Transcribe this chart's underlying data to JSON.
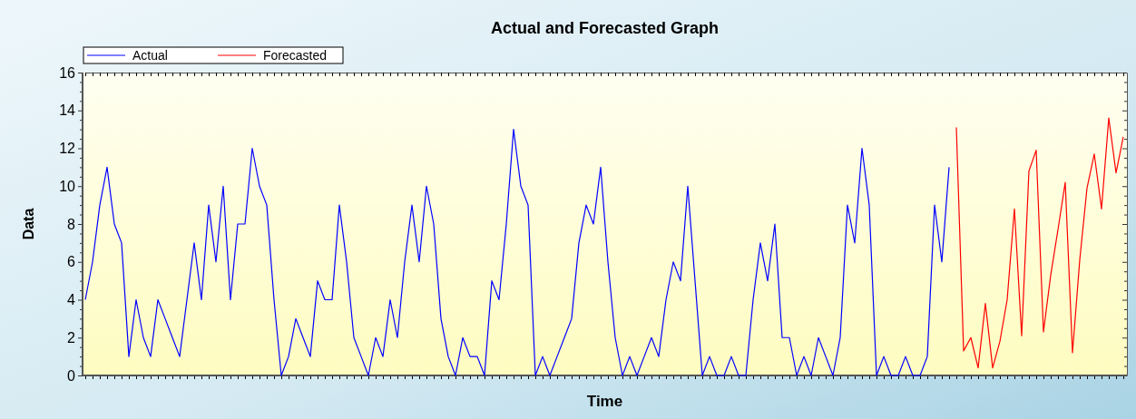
{
  "chart_data": {
    "type": "line",
    "title": "Actual and Forecasted Graph",
    "xlabel": "Time",
    "ylabel": "Data",
    "categories": [
      null,
      null,
      null,
      null,
      null,
      null,
      null,
      null,
      null,
      null,
      null,
      null,
      null,
      null,
      null,
      null,
      null,
      null,
      null,
      null,
      null,
      null,
      null,
      null,
      null,
      null,
      null,
      null,
      null,
      null,
      null,
      null,
      null,
      null,
      null,
      null,
      null,
      null,
      null,
      null,
      null,
      null,
      null,
      null,
      null,
      null,
      null,
      null,
      null,
      null,
      null,
      null,
      null,
      null,
      null,
      null,
      null,
      null,
      null,
      null,
      null,
      null,
      null,
      null,
      null,
      null,
      null,
      null,
      null,
      null,
      null,
      null,
      null,
      null,
      null,
      null,
      null,
      null,
      null,
      null,
      null,
      null,
      null,
      null,
      null,
      null,
      null,
      null,
      null,
      null,
      null,
      null,
      null,
      null,
      null,
      null,
      null,
      null,
      null,
      null,
      null,
      null,
      null,
      null,
      null,
      null,
      null,
      null,
      null,
      null,
      null,
      null,
      null,
      null,
      null,
      null,
      null,
      null,
      null,
      null,
      null,
      null,
      null,
      null,
      null,
      null,
      null,
      null,
      null,
      null,
      null,
      null,
      null,
      null,
      null,
      null,
      null,
      null,
      null,
      null,
      null,
      null,
      null,
      null
    ],
    "series": [
      {
        "name": "Actual",
        "color": "#0000ff",
        "values": [
          4,
          6,
          9,
          11,
          8,
          7,
          1,
          4,
          2,
          1,
          4,
          3,
          2,
          1,
          4,
          7,
          4,
          9,
          6,
          10,
          4,
          8,
          8,
          12,
          10,
          9,
          4,
          0,
          1,
          3,
          2,
          1,
          5,
          4,
          4,
          9,
          6,
          2,
          1,
          0,
          2,
          1,
          4,
          2,
          6,
          9,
          6,
          10,
          8,
          3,
          1,
          0,
          2,
          1,
          1,
          0,
          5,
          4,
          8,
          13,
          10,
          9,
          0,
          1,
          0,
          1,
          2,
          3,
          7,
          9,
          8,
          11,
          6,
          2,
          0,
          1,
          0,
          1,
          2,
          1,
          4,
          6,
          5,
          10,
          5,
          0,
          1,
          0,
          0,
          1,
          0,
          0,
          4,
          7,
          5,
          8,
          2,
          2,
          0,
          1,
          0,
          2,
          1,
          0,
          2,
          9,
          7,
          12,
          9,
          0,
          1,
          0,
          0,
          1,
          0,
          0,
          1,
          9,
          6,
          11,
          null,
          null,
          null,
          null,
          null,
          null,
          null,
          null,
          null,
          null,
          null,
          null,
          null,
          null,
          null,
          null,
          null,
          null,
          null,
          null,
          null,
          null,
          null,
          null
        ]
      },
      {
        "name": "Forecasted",
        "color": "#ff0000",
        "values": [
          null,
          null,
          null,
          null,
          null,
          null,
          null,
          null,
          null,
          null,
          null,
          null,
          null,
          null,
          null,
          null,
          null,
          null,
          null,
          null,
          null,
          null,
          null,
          null,
          null,
          null,
          null,
          null,
          null,
          null,
          null,
          null,
          null,
          null,
          null,
          null,
          null,
          null,
          null,
          null,
          null,
          null,
          null,
          null,
          null,
          null,
          null,
          null,
          null,
          null,
          null,
          null,
          null,
          null,
          null,
          null,
          null,
          null,
          null,
          null,
          null,
          null,
          null,
          null,
          null,
          null,
          null,
          null,
          null,
          null,
          null,
          null,
          null,
          null,
          null,
          null,
          null,
          null,
          null,
          null,
          null,
          null,
          null,
          null,
          null,
          null,
          null,
          null,
          null,
          null,
          null,
          null,
          null,
          null,
          null,
          null,
          null,
          null,
          null,
          null,
          null,
          null,
          null,
          null,
          null,
          null,
          null,
          null,
          null,
          null,
          null,
          null,
          null,
          null,
          null,
          null,
          null,
          null,
          null,
          null,
          13.1,
          1.3,
          2.0,
          0.4,
          3.8,
          0.4,
          1.8,
          4.0,
          8.8,
          2.1,
          10.8,
          11.9,
          2.3,
          5.3,
          7.7,
          10.2,
          1.2,
          6.1,
          9.9,
          11.7,
          8.8,
          13.6,
          10.7,
          12.6
        ]
      }
    ],
    "ylim": [
      0,
      16
    ],
    "yticks": [
      0,
      {
        "value": 0.5,
        "label": null
      },
      {
        "value": 1,
        "label": null
      },
      {
        "value": 1.5,
        "label": null
      },
      2,
      {
        "value": 2.5,
        "label": null
      },
      {
        "value": 3,
        "label": null
      },
      {
        "value": 3.5,
        "label": null
      },
      4,
      {
        "value": 4.5,
        "label": null
      },
      {
        "value": 5,
        "label": null
      },
      {
        "value": 5.5,
        "label": null
      },
      6,
      {
        "value": 6.5,
        "label": null
      },
      {
        "value": 7,
        "label": null
      },
      {
        "value": 7.5,
        "label": null
      },
      8,
      {
        "value": 8.5,
        "label": null
      },
      {
        "value": 9,
        "label": null
      },
      {
        "value": 9.5,
        "label": null
      },
      10,
      {
        "value": 10.5,
        "label": null
      },
      {
        "value": 11,
        "label": null
      },
      {
        "value": 11.5,
        "label": null
      },
      12,
      {
        "value": 12.5,
        "label": null
      },
      {
        "value": 13,
        "label": null
      },
      {
        "value": 13.5,
        "label": null
      },
      14,
      {
        "value": 14.5,
        "label": null
      },
      {
        "value": 15,
        "label": null
      },
      {
        "value": 15.5,
        "label": null
      },
      16
    ],
    "grid": false,
    "legend": "top left",
    "line_style": "solid",
    "marker": "none"
  }
}
